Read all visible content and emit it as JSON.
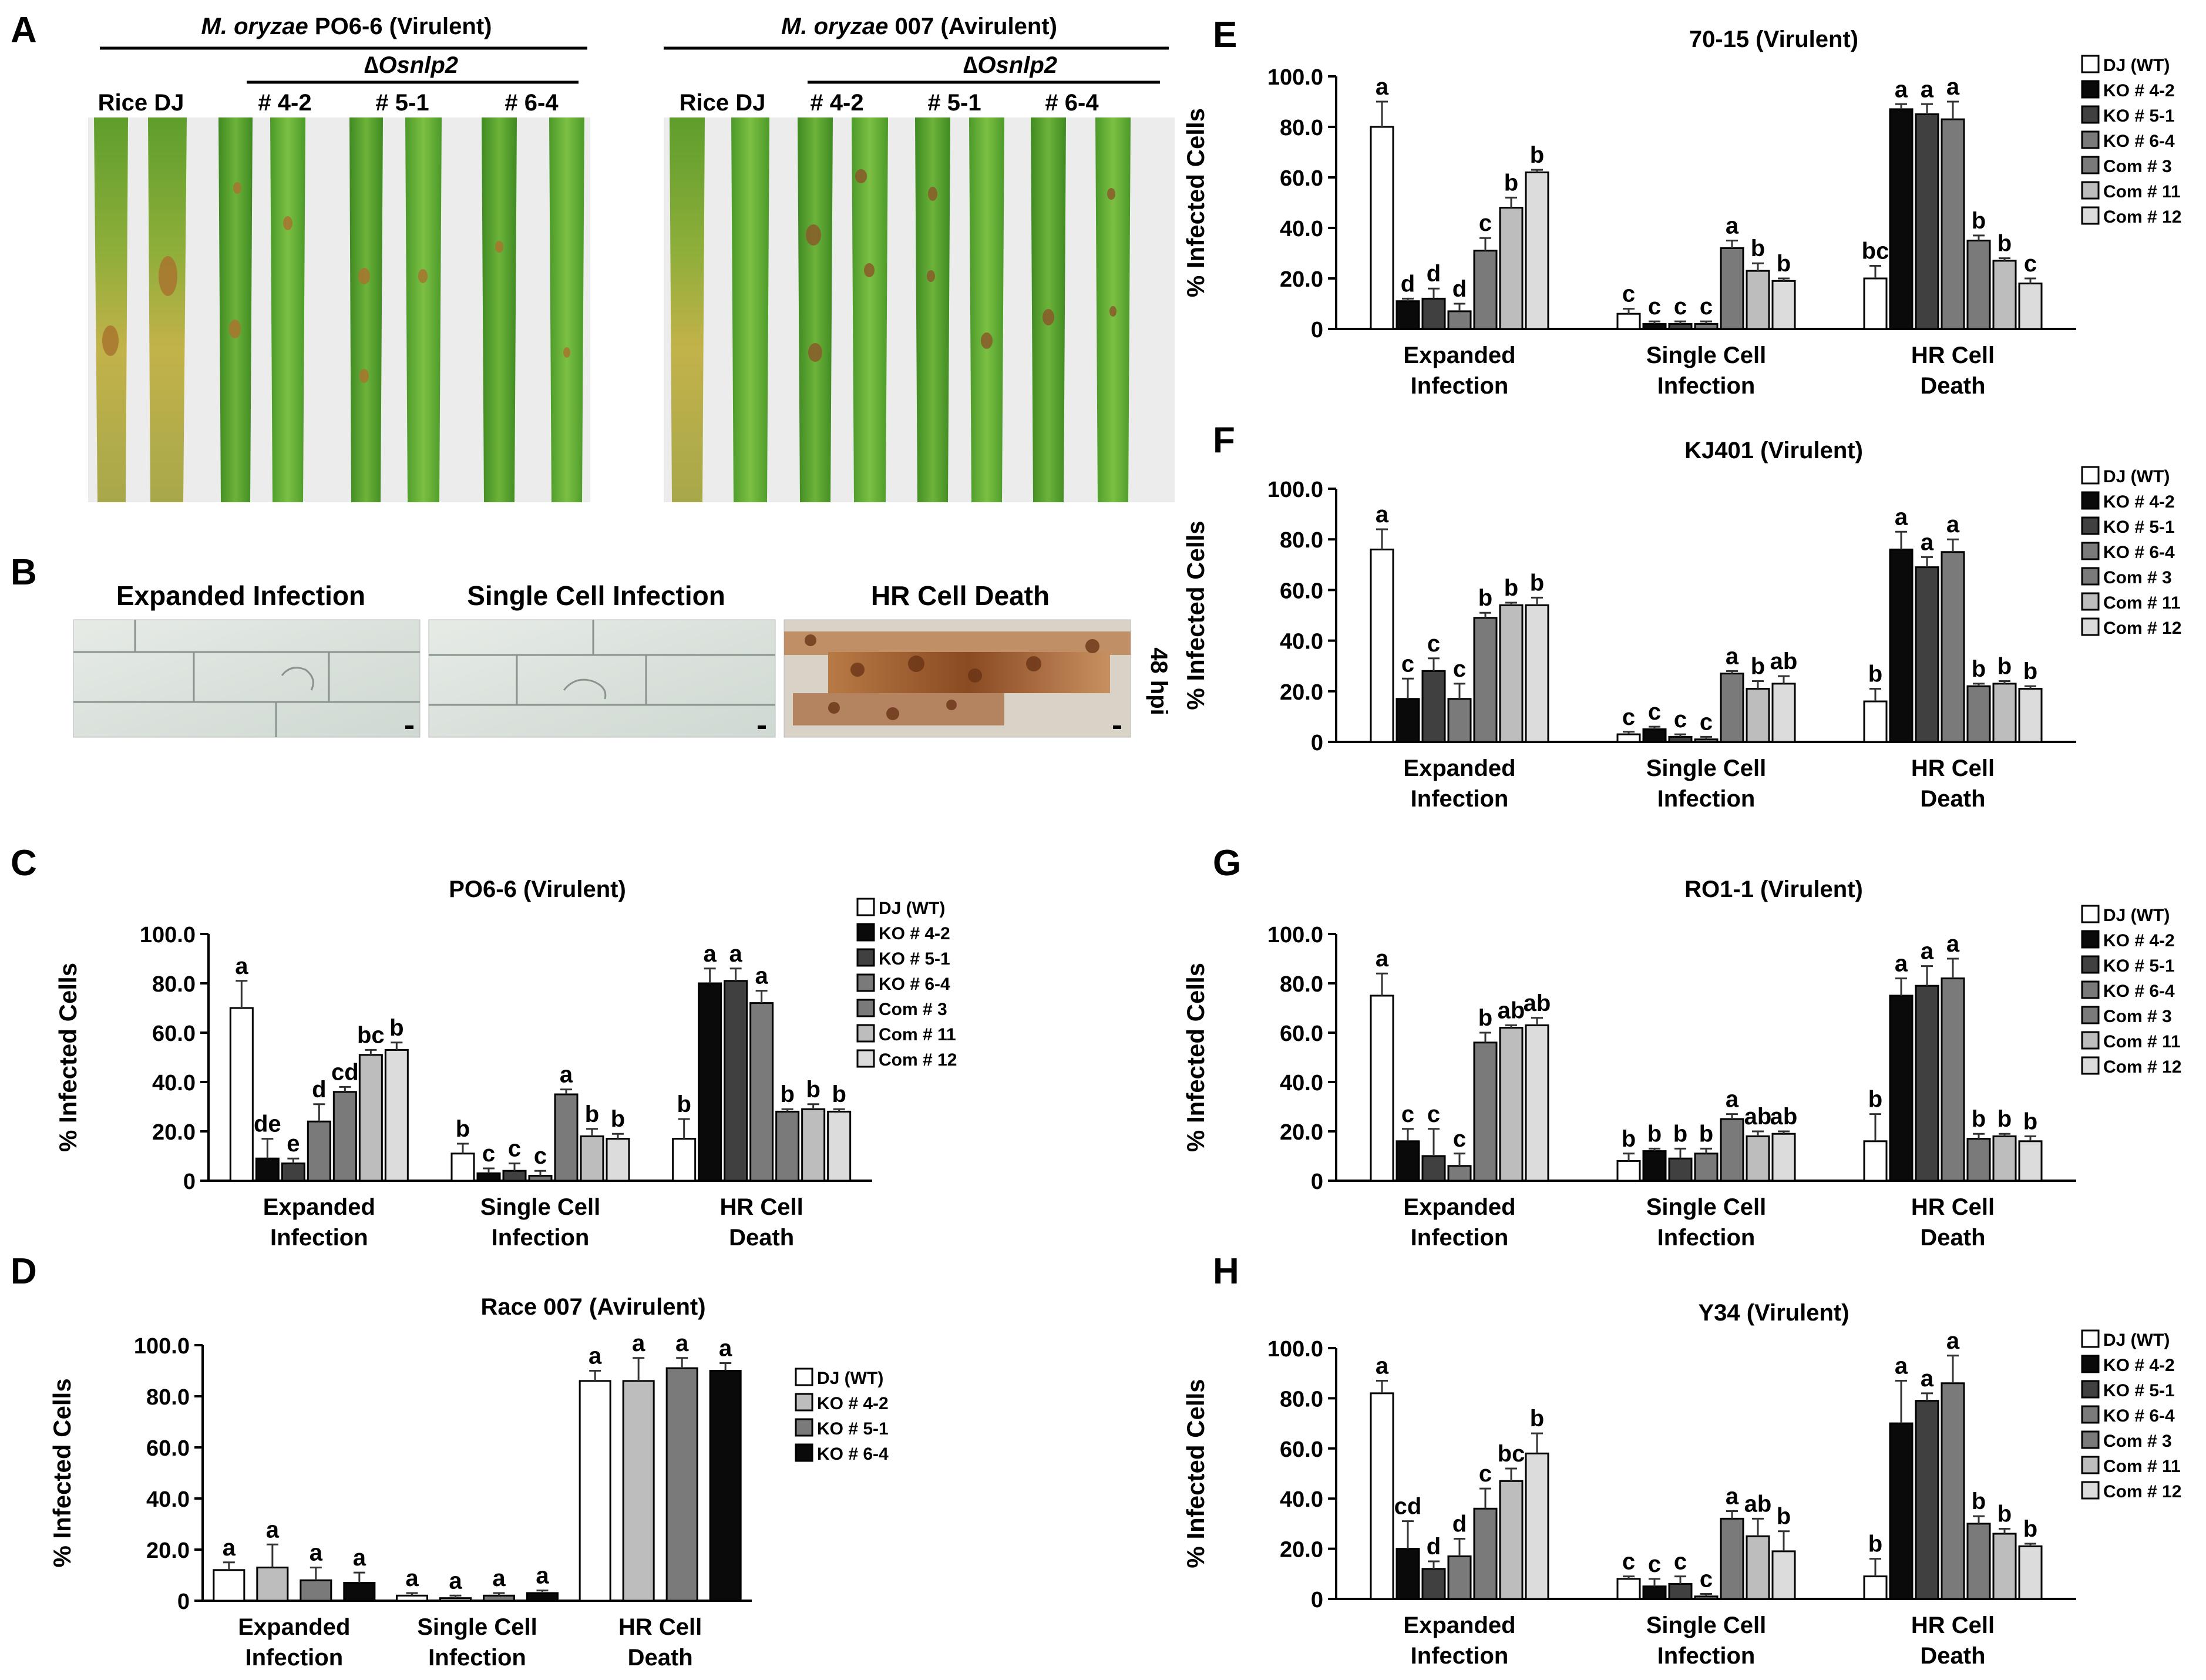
{
  "panels": {
    "A": "A",
    "B": "B",
    "C": "C",
    "D": "D",
    "E": "E",
    "F": "F",
    "G": "G",
    "H": "H"
  },
  "panel_a": {
    "left_group": {
      "species": "M. oryzae",
      "rest": " PO6-6 (Virulent)",
      "mutant": "∆Osnlp2",
      "wt_label": "Rice DJ",
      "lines": [
        "# 4-2",
        "# 5-1",
        "# 6-4"
      ]
    },
    "right_group": {
      "species": "M. oryzae",
      "rest": " 007 (Avirulent)",
      "mutant": "∆Osnlp2",
      "wt_label": "Rice DJ",
      "lines": [
        "# 4-2",
        "# 5-1",
        "# 6-4"
      ]
    }
  },
  "panel_b": {
    "titles": [
      "Expanded  Infection",
      "Single Cell  Infection",
      "HR Cell Death"
    ],
    "time_label": "48 hpi"
  },
  "colors": {
    "white": "#ffffff",
    "black": "#0a0a0a",
    "dgray": "#404040",
    "mgray": "#7a7a7a",
    "lgray": "#bdbdbd",
    "vlgray": "#dcdcdc",
    "leaf_green": "#4f9a2a"
  },
  "chart_data": [
    {
      "id": "C",
      "type": "bar",
      "title": "PO6-6 (Virulent)",
      "ylabel": "%  Infected  Cells",
      "ylim": [
        0,
        100
      ],
      "yticks": [
        "0",
        "20.0",
        "40.0",
        "60.0",
        "80.0",
        "100.0"
      ],
      "categories": [
        "Expanded\nInfection",
        "Single Cell\nInfection",
        "HR Cell\nDeath"
      ],
      "series": [
        {
          "name": "DJ (WT)",
          "fill": "white",
          "values": [
            70,
            11,
            17
          ],
          "errors": [
            11,
            4,
            8
          ],
          "letters": [
            "a",
            "b",
            "b"
          ]
        },
        {
          "name": "KO # 4-2",
          "fill": "black",
          "values": [
            9,
            3,
            80
          ],
          "errors": [
            8,
            2,
            6
          ],
          "letters": [
            "de",
            "c",
            "a"
          ]
        },
        {
          "name": "KO # 5-1",
          "fill": "dgray",
          "values": [
            7,
            4,
            81
          ],
          "errors": [
            2,
            3,
            5
          ],
          "letters": [
            "e",
            "c",
            "a"
          ]
        },
        {
          "name": "KO # 6-4",
          "fill": "mgray",
          "values": [
            24,
            2,
            72
          ],
          "errors": [
            7,
            2,
            5
          ],
          "letters": [
            "d",
            "c",
            "a"
          ]
        },
        {
          "name": "Com # 3",
          "fill": "mgray",
          "values": [
            36,
            35,
            28
          ],
          "errors": [
            2,
            2,
            1
          ],
          "letters": [
            "cd",
            "a",
            "b"
          ]
        },
        {
          "name": "Com # 11",
          "fill": "lgray",
          "values": [
            51,
            18,
            29
          ],
          "errors": [
            2,
            3,
            2
          ],
          "letters": [
            "bc",
            "b",
            "b"
          ]
        },
        {
          "name": "Com # 12",
          "fill": "vlgray",
          "values": [
            53,
            17,
            28
          ],
          "errors": [
            3,
            2,
            1
          ],
          "letters": [
            "b",
            "b",
            "b"
          ]
        }
      ]
    },
    {
      "id": "D",
      "type": "bar",
      "title": "Race 007  (Avirulent)",
      "ylabel": "%  Infected  Cells",
      "ylim": [
        0,
        100
      ],
      "yticks": [
        "0",
        "20.0",
        "40.0",
        "60.0",
        "80.0",
        "100.0"
      ],
      "categories": [
        "Expanded\nInfection",
        "Single Cell\nInfection",
        "HR Cell\nDeath"
      ],
      "series": [
        {
          "name": "DJ (WT)",
          "fill": "white",
          "values": [
            12,
            2,
            86
          ],
          "errors": [
            3,
            1,
            4
          ],
          "letters": [
            "a",
            "a",
            "a"
          ]
        },
        {
          "name": "KO # 4-2",
          "fill": "lgray",
          "values": [
            13,
            1,
            86
          ],
          "errors": [
            9,
            1,
            9
          ],
          "letters": [
            "a",
            "a",
            "a"
          ]
        },
        {
          "name": "KO # 5-1",
          "fill": "mgray",
          "values": [
            8,
            2,
            91
          ],
          "errors": [
            5,
            1,
            4
          ],
          "letters": [
            "a",
            "a",
            "a"
          ]
        },
        {
          "name": "KO # 6-4",
          "fill": "black",
          "values": [
            7,
            3,
            90
          ],
          "errors": [
            4,
            1,
            3
          ],
          "letters": [
            "a",
            "a",
            "a"
          ]
        }
      ]
    },
    {
      "id": "E",
      "type": "bar",
      "title": "70-15 (Virulent)",
      "ylabel": "%  Infected  Cells",
      "ylim": [
        0,
        100
      ],
      "yticks": [
        "0",
        "20.0",
        "40.0",
        "60.0",
        "80.0",
        "100.0"
      ],
      "categories": [
        "Expanded\nInfection",
        "Single Cell\nInfection",
        "HR Cell\nDeath"
      ],
      "series": [
        {
          "name": "DJ (WT)",
          "fill": "white",
          "values": [
            80,
            6,
            20
          ],
          "errors": [
            10,
            2,
            5
          ],
          "letters": [
            "a",
            "c",
            "bc"
          ]
        },
        {
          "name": "KO # 4-2",
          "fill": "black",
          "values": [
            11,
            2,
            87
          ],
          "errors": [
            1,
            1,
            2
          ],
          "letters": [
            "d",
            "c",
            "a"
          ]
        },
        {
          "name": "KO # 5-1",
          "fill": "dgray",
          "values": [
            12,
            2,
            85
          ],
          "errors": [
            4,
            1,
            4
          ],
          "letters": [
            "d",
            "c",
            "a"
          ]
        },
        {
          "name": "KO # 6-4",
          "fill": "mgray",
          "values": [
            7,
            2,
            83
          ],
          "errors": [
            3,
            1,
            7
          ],
          "letters": [
            "d",
            "c",
            "a"
          ]
        },
        {
          "name": "Com # 3",
          "fill": "mgray",
          "values": [
            31,
            32,
            35
          ],
          "errors": [
            5,
            3,
            2
          ],
          "letters": [
            "c",
            "a",
            "b"
          ]
        },
        {
          "name": "Com # 11",
          "fill": "lgray",
          "values": [
            48,
            23,
            27
          ],
          "errors": [
            4,
            3,
            1
          ],
          "letters": [
            "b",
            "b",
            "b"
          ]
        },
        {
          "name": "Com # 12",
          "fill": "vlgray",
          "values": [
            62,
            19,
            18
          ],
          "errors": [
            1,
            1,
            2
          ],
          "letters": [
            "b",
            "b",
            "c"
          ]
        }
      ]
    },
    {
      "id": "F",
      "type": "bar",
      "title": "KJ401 (Virulent)",
      "ylabel": "%  Infected  Cells",
      "ylim": [
        0,
        100
      ],
      "yticks": [
        "0",
        "20.0",
        "40.0",
        "60.0",
        "80.0",
        "100.0"
      ],
      "categories": [
        "Expanded\nInfection",
        "Single Cell\nInfection",
        "HR Cell\nDeath"
      ],
      "series": [
        {
          "name": "DJ (WT)",
          "fill": "white",
          "values": [
            76,
            3,
            16
          ],
          "errors": [
            8,
            1,
            5
          ],
          "letters": [
            "a",
            "c",
            "b"
          ]
        },
        {
          "name": "KO # 4-2",
          "fill": "black",
          "values": [
            17,
            5,
            76
          ],
          "errors": [
            8,
            1,
            7
          ],
          "letters": [
            "c",
            "c",
            "a"
          ]
        },
        {
          "name": "KO # 5-1",
          "fill": "dgray",
          "values": [
            28,
            2,
            69
          ],
          "errors": [
            5,
            1,
            4
          ],
          "letters": [
            "c",
            "c",
            "a"
          ]
        },
        {
          "name": "KO # 6-4",
          "fill": "mgray",
          "values": [
            17,
            1,
            75
          ],
          "errors": [
            6,
            1,
            5
          ],
          "letters": [
            "c",
            "c",
            "a"
          ]
        },
        {
          "name": "Com # 3",
          "fill": "mgray",
          "values": [
            49,
            27,
            22
          ],
          "errors": [
            2,
            1,
            1
          ],
          "letters": [
            "b",
            "a",
            "b"
          ]
        },
        {
          "name": "Com # 11",
          "fill": "lgray",
          "values": [
            54,
            21,
            23
          ],
          "errors": [
            1,
            3,
            1
          ],
          "letters": [
            "b",
            "b",
            "b"
          ]
        },
        {
          "name": "Com # 12",
          "fill": "vlgray",
          "values": [
            54,
            23,
            21
          ],
          "errors": [
            3,
            3,
            1
          ],
          "letters": [
            "b",
            "ab",
            "b"
          ]
        }
      ]
    },
    {
      "id": "G",
      "type": "bar",
      "title": "RO1-1 (Virulent)",
      "ylabel": "%  Infected  Cells",
      "ylim": [
        0,
        100
      ],
      "yticks": [
        "0",
        "20.0",
        "40.0",
        "60.0",
        "80.0",
        "100.0"
      ],
      "categories": [
        "Expanded\nInfection",
        "Single Cell\nInfection",
        "HR Cell\nDeath"
      ],
      "series": [
        {
          "name": "DJ (WT)",
          "fill": "white",
          "values": [
            75,
            8,
            16
          ],
          "errors": [
            9,
            3,
            11
          ],
          "letters": [
            "a",
            "b",
            "b"
          ]
        },
        {
          "name": "KO # 4-2",
          "fill": "black",
          "values": [
            16,
            12,
            75
          ],
          "errors": [
            5,
            1,
            7
          ],
          "letters": [
            "c",
            "b",
            "a"
          ]
        },
        {
          "name": "KO # 5-1",
          "fill": "dgray",
          "values": [
            10,
            9,
            79
          ],
          "errors": [
            11,
            4,
            8
          ],
          "letters": [
            "c",
            "b",
            "a"
          ]
        },
        {
          "name": "KO # 6-4",
          "fill": "mgray",
          "values": [
            6,
            11,
            82
          ],
          "errors": [
            5,
            2,
            8
          ],
          "letters": [
            "c",
            "b",
            "a"
          ]
        },
        {
          "name": "Com # 3",
          "fill": "mgray",
          "values": [
            56,
            25,
            17
          ],
          "errors": [
            4,
            2,
            2
          ],
          "letters": [
            "b",
            "a",
            "b"
          ]
        },
        {
          "name": "Com # 11",
          "fill": "lgray",
          "values": [
            62,
            18,
            18
          ],
          "errors": [
            1,
            2,
            1
          ],
          "letters": [
            "ab",
            "ab",
            "b"
          ]
        },
        {
          "name": "Com # 12",
          "fill": "vlgray",
          "values": [
            63,
            19,
            16
          ],
          "errors": [
            3,
            1,
            2
          ],
          "letters": [
            "ab",
            "ab",
            "b"
          ]
        }
      ]
    },
    {
      "id": "H",
      "type": "bar",
      "title": "Y34 (Virulent)",
      "ylabel": "%  Infected  Cells",
      "ylim": [
        0,
        100
      ],
      "yticks": [
        "0",
        "20.0",
        "40.0",
        "60.0",
        "80.0",
        "100.0"
      ],
      "categories": [
        "Expanded\nInfection",
        "Single Cell\nInfection",
        "HR Cell\nDeath"
      ],
      "series": [
        {
          "name": "DJ (WT)",
          "fill": "white",
          "values": [
            82,
            8,
            9
          ],
          "errors": [
            5,
            1,
            7
          ],
          "letters": [
            "a",
            "c",
            "b"
          ]
        },
        {
          "name": "KO # 4-2",
          "fill": "black",
          "values": [
            20,
            5,
            70
          ],
          "errors": [
            11,
            3,
            17
          ],
          "letters": [
            "cd",
            "c",
            "a"
          ]
        },
        {
          "name": "KO # 5-1",
          "fill": "dgray",
          "values": [
            12,
            6,
            79
          ],
          "errors": [
            3,
            3,
            3
          ],
          "letters": [
            "d",
            "c",
            "a"
          ]
        },
        {
          "name": "KO # 6-4",
          "fill": "mgray",
          "values": [
            17,
            1,
            86
          ],
          "errors": [
            7,
            1,
            11
          ],
          "letters": [
            "d",
            "c",
            "a"
          ]
        },
        {
          "name": "Com # 3",
          "fill": "mgray",
          "values": [
            36,
            32,
            30
          ],
          "errors": [
            8,
            3,
            3
          ],
          "letters": [
            "c",
            "a",
            "b"
          ]
        },
        {
          "name": "Com # 11",
          "fill": "lgray",
          "values": [
            47,
            25,
            26
          ],
          "errors": [
            5,
            7,
            2
          ],
          "letters": [
            "bc",
            "ab",
            "b"
          ]
        },
        {
          "name": "Com # 12",
          "fill": "vlgray",
          "values": [
            58,
            19,
            21
          ],
          "errors": [
            8,
            8,
            1
          ],
          "letters": [
            "b",
            "b",
            "b"
          ]
        }
      ]
    }
  ]
}
